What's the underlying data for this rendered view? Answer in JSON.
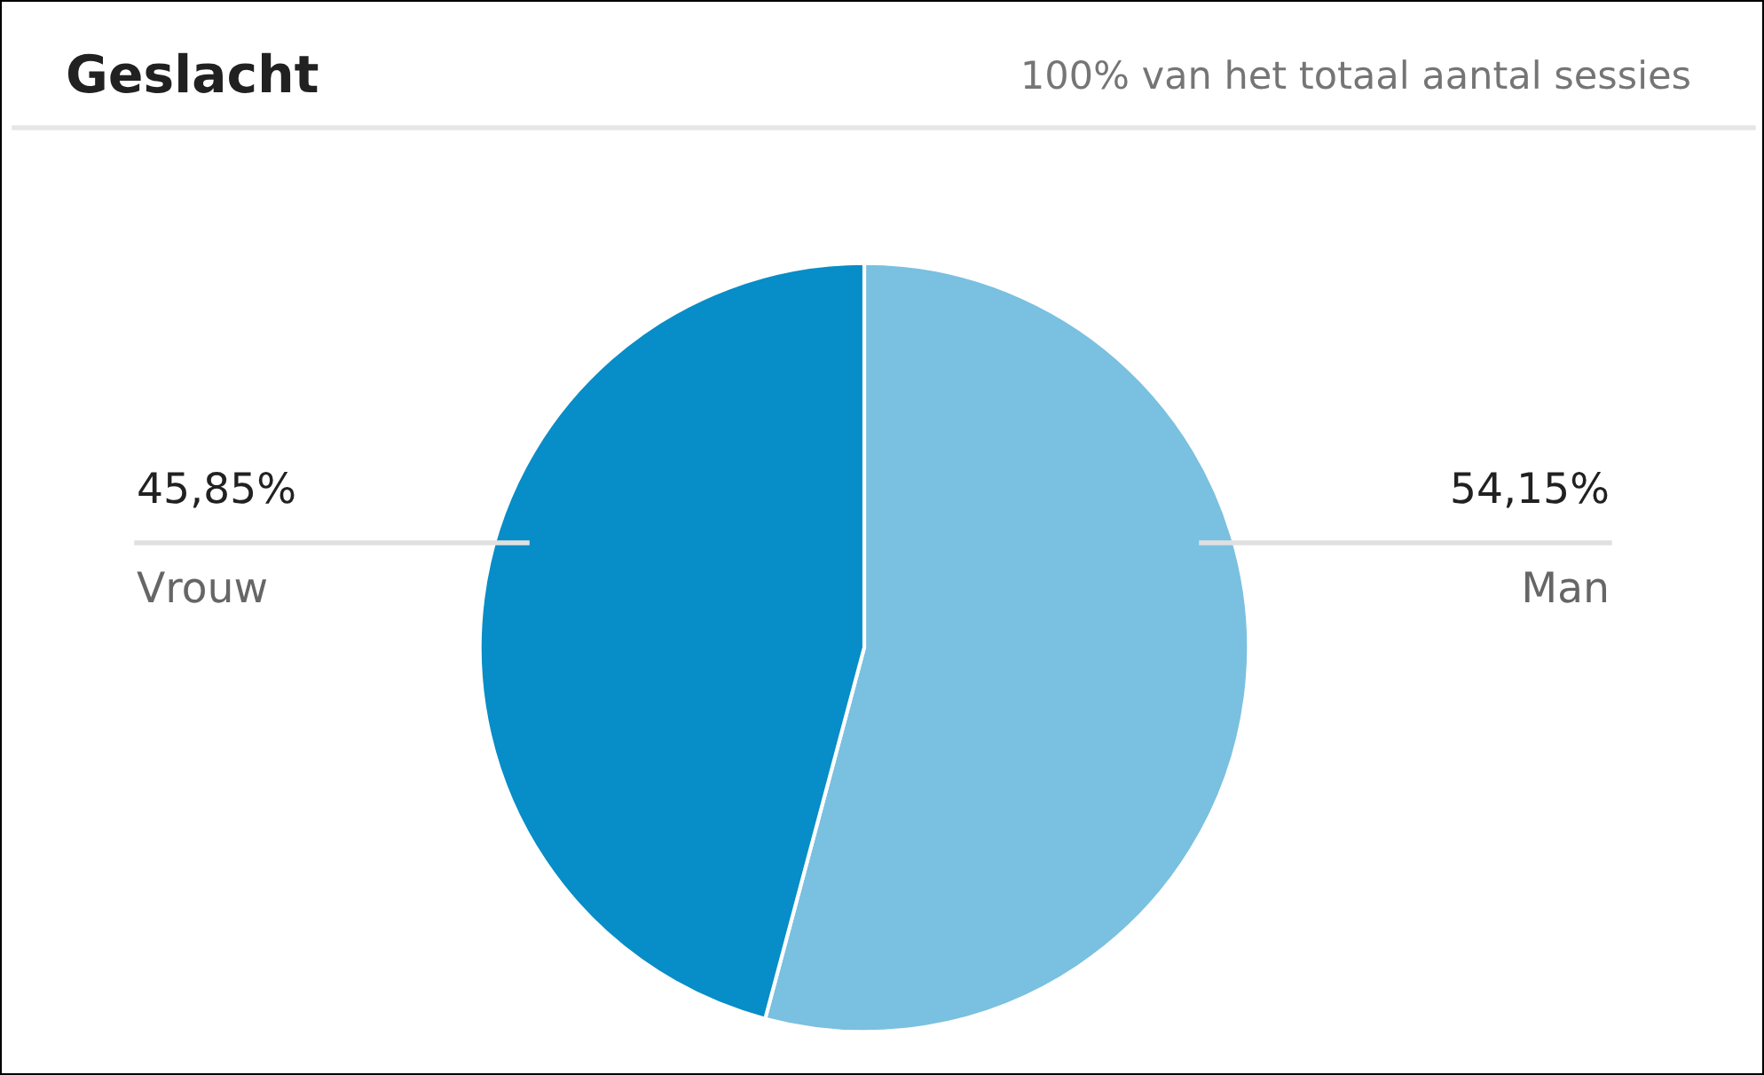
{
  "chart_data": {
    "type": "pie",
    "title": "Geslacht",
    "subtitle": "100% van het totaal aantal sessies",
    "categories": [
      "Man",
      "Vrouw"
    ],
    "values": [
      54.15,
      45.85
    ],
    "colors": [
      "#7ac0e0",
      "#078dc7"
    ],
    "value_labels": [
      "54,15%",
      "45,85%"
    ]
  }
}
